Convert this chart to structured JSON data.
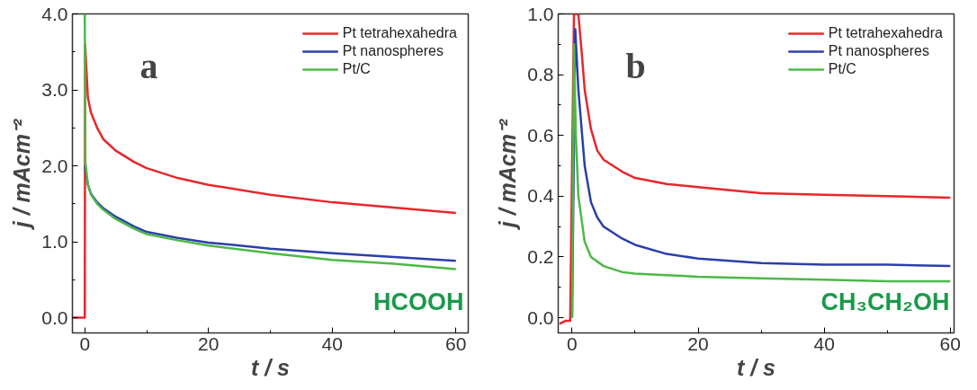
{
  "chart_data": [
    {
      "type": "line",
      "xlabel": "t / s",
      "ylabel": "j / mAcm⁻²",
      "annotations": [
        "a",
        "HCOOH"
      ],
      "legend": "top right",
      "grid": false,
      "marker": "none",
      "line_style": "solid",
      "xlim": [
        -2,
        62
      ],
      "ylim": [
        -0.2,
        4.0
      ],
      "xticks": [
        0,
        {
          "value": 10,
          "label": null
        },
        20,
        {
          "value": 30,
          "label": null
        },
        40,
        {
          "value": 50,
          "label": null
        },
        60
      ],
      "yticks": [
        {
          "value": 0,
          "label": "0.0"
        },
        {
          "value": 0.5,
          "label": null
        },
        {
          "value": 1,
          "label": "1.0"
        },
        {
          "value": 1.5,
          "label": null
        },
        {
          "value": 2,
          "label": "2.0"
        },
        {
          "value": 2.5,
          "label": null
        },
        {
          "value": 3,
          "label": "3.0"
        },
        {
          "value": 3.5,
          "label": null
        },
        {
          "value": 4,
          "label": "4.0"
        }
      ],
      "series": [
        {
          "name": "Pt tetrahexahedra",
          "color": "#e8262b",
          "x": [
            -2,
            0,
            0.05,
            0.5,
            1,
            2,
            3,
            5,
            8,
            10,
            15,
            20,
            30,
            40,
            50,
            60
          ],
          "values": [
            0,
            0,
            3.6,
            2.9,
            2.7,
            2.5,
            2.35,
            2.2,
            2.05,
            1.97,
            1.84,
            1.75,
            1.62,
            1.52,
            1.45,
            1.38
          ]
        },
        {
          "name": "Pt nanospheres",
          "color": "#2b3fa8",
          "x": [
            0,
            0.5,
            1,
            2,
            3,
            5,
            8,
            10,
            15,
            20,
            30,
            40,
            50,
            60
          ],
          "values": [
            2.0,
            1.75,
            1.63,
            1.52,
            1.44,
            1.33,
            1.2,
            1.13,
            1.05,
            0.99,
            0.91,
            0.85,
            0.8,
            0.75
          ]
        },
        {
          "name": "Pt/C",
          "color": "#4cb848",
          "x": [
            0,
            0.1,
            0.5,
            1,
            2,
            3,
            5,
            8,
            10,
            15,
            20,
            30,
            40,
            50,
            60
          ],
          "values": [
            4.0,
            2.05,
            1.75,
            1.62,
            1.5,
            1.42,
            1.3,
            1.17,
            1.1,
            1.02,
            0.95,
            0.85,
            0.76,
            0.71,
            0.64
          ]
        }
      ]
    },
    {
      "type": "line",
      "xlabel": "t / s",
      "ylabel": "j / mAcm⁻²",
      "annotations": [
        "b",
        "CH₃CH₂OH"
      ],
      "legend": "top right",
      "grid": false,
      "marker": "none",
      "line_style": "solid",
      "xlim": [
        -2.2,
        60.6
      ],
      "ylim": [
        -0.05,
        1.0
      ],
      "xticks": [
        0,
        {
          "value": 10,
          "label": null
        },
        20,
        {
          "value": 30,
          "label": null
        },
        40,
        {
          "value": 50,
          "label": null
        },
        60
      ],
      "yticks": [
        {
          "value": 0,
          "label": "0.0"
        },
        {
          "value": 0.1,
          "label": null
        },
        0.2,
        {
          "value": 0.3,
          "label": null
        },
        0.4,
        {
          "value": 0.5,
          "label": null
        },
        0.6,
        {
          "value": 0.7,
          "label": null
        },
        0.8,
        {
          "value": 0.9,
          "label": null
        },
        {
          "value": 1,
          "label": "1.0"
        }
      ],
      "series": [
        {
          "name": "Pt tetrahexahedra",
          "color": "#e8262b",
          "x": [
            -2,
            -1,
            -0.3,
            0,
            0.3,
            1,
            1.5,
            2,
            3,
            4,
            5,
            8,
            10,
            15,
            20,
            30,
            40,
            50,
            60
          ],
          "values": [
            -0.02,
            -0.01,
            -0.01,
            0.5,
            1.0,
            1.0,
            0.88,
            0.75,
            0.62,
            0.55,
            0.52,
            0.48,
            0.46,
            0.44,
            0.43,
            0.41,
            0.405,
            0.4,
            0.395
          ]
        },
        {
          "name": "Pt nanospheres",
          "color": "#2b3fa8",
          "x": [
            0,
            0.5,
            1,
            2,
            3,
            4,
            5,
            8,
            10,
            15,
            20,
            30,
            40,
            50,
            60
          ],
          "values": [
            0,
            0.95,
            0.75,
            0.5,
            0.38,
            0.33,
            0.3,
            0.26,
            0.24,
            0.21,
            0.195,
            0.18,
            0.175,
            0.175,
            0.17
          ]
        },
        {
          "name": "Pt/C",
          "color": "#4cb848",
          "x": [
            0,
            0.3,
            0.6,
            1,
            2,
            3,
            5,
            8,
            10,
            15,
            20,
            30,
            40,
            50,
            60
          ],
          "values": [
            0,
            0.9,
            0.6,
            0.4,
            0.25,
            0.2,
            0.17,
            0.15,
            0.145,
            0.14,
            0.135,
            0.13,
            0.125,
            0.12,
            0.12
          ]
        }
      ]
    }
  ]
}
